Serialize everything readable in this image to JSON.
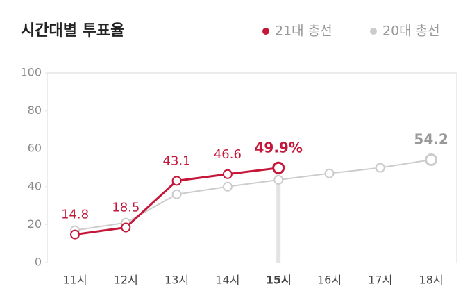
{
  "chart_data": {
    "type": "line",
    "title": "시간대별 투표율",
    "categories": [
      "11시",
      "12시",
      "13시",
      "14시",
      "15시",
      "16시",
      "17시",
      "18시"
    ],
    "highlight_index": 4,
    "legend": "top-right",
    "series": [
      {
        "name": "21대 총선",
        "color": "#c4173a",
        "values": [
          14.8,
          18.5,
          43.1,
          46.6,
          49.9,
          null,
          null,
          null
        ],
        "value_labels": [
          "14.8",
          "18.5",
          "43.1",
          "46.6",
          "49.9%",
          null,
          null,
          null
        ]
      },
      {
        "name": "20대 총선",
        "color": "#cccccc",
        "values": [
          17,
          21,
          36,
          40,
          43.6,
          47,
          50,
          54.2
        ],
        "value_labels": [
          null,
          null,
          null,
          null,
          null,
          null,
          null,
          "54.2"
        ]
      }
    ],
    "ylim": [
      0,
      100
    ],
    "yticks": [
      0,
      20,
      40,
      60,
      80,
      100
    ]
  }
}
